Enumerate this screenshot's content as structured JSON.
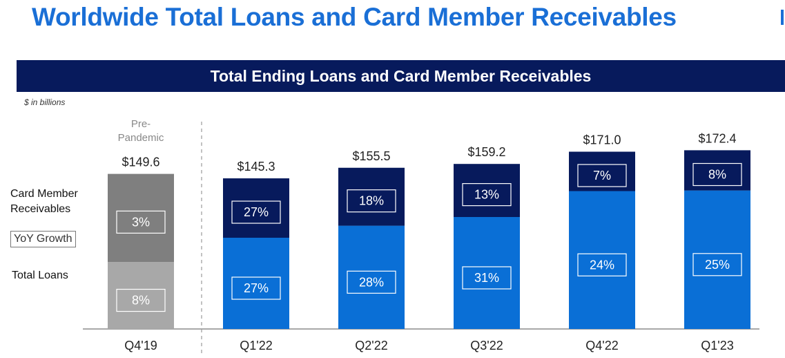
{
  "page": {
    "title": "Worldwide Total Loans and Card Member Receivables",
    "banner": "Total Ending Loans and Card Member Receivables",
    "unit_note": "$ in billions"
  },
  "legend": {
    "card_member": "Card Member\nReceivables",
    "yoy_growth": "YoY Growth",
    "total_loans": "Total Loans"
  },
  "colors": {
    "title": "#1a6fd6",
    "banner": "#071a5c",
    "loans": "#0a6fd6",
    "receivables": "#071a5c",
    "pre_pandemic_loans": "#a8a8a8",
    "pre_pandemic_receivables": "#7f7f7f"
  },
  "chart_data": {
    "type": "bar",
    "stacked": true,
    "categories": [
      "Q4'19",
      "Q1'22",
      "Q2'22",
      "Q3'22",
      "Q4'22",
      "Q1'23"
    ],
    "totals": [
      149.6,
      145.3,
      155.5,
      159.2,
      171.0,
      172.4
    ],
    "total_labels": [
      "$149.6",
      "$145.3",
      "$155.5",
      "$159.2",
      "$171.0",
      "$172.4"
    ],
    "series": [
      {
        "name": "Total Loans",
        "values": [
          64.6,
          88.0,
          99.6,
          108.0,
          133.0,
          133.6
        ],
        "yoy_labels": [
          "8%",
          "27%",
          "28%",
          "31%",
          "24%",
          "25%"
        ]
      },
      {
        "name": "Card Member Receivables",
        "values": [
          85.0,
          57.3,
          55.9,
          51.2,
          38.0,
          38.8
        ],
        "yoy_labels": [
          "3%",
          "27%",
          "18%",
          "13%",
          "7%",
          "8%"
        ]
      }
    ],
    "annotation": "Pre-\nPandemic",
    "ylim": [
      0,
      172.4
    ]
  }
}
